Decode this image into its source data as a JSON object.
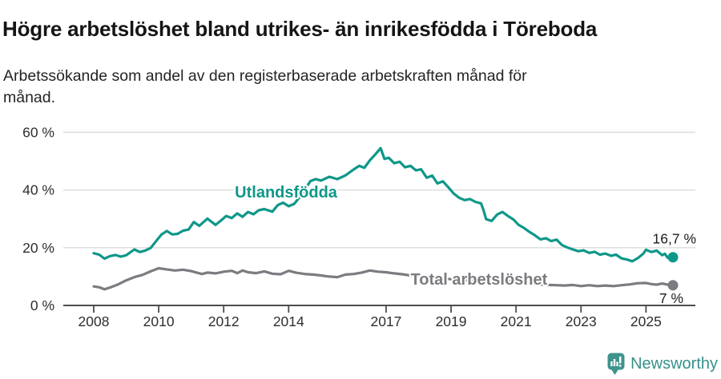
{
  "title": "Högre arbetslöshet bland utrikes- än inrikesfödda i Töreboda",
  "subtitle": "Arbetssökande som andel av den registerbaserade arbetskraften månad för månad.",
  "footer": {
    "brand": "Newsworthy",
    "logo_icon": "speech-bubble-bar-chart",
    "brand_color": "#35918a",
    "logo_fill": "#3e948d"
  },
  "chart_data": {
    "type": "line",
    "title": "Högre arbetslöshet bland utrikes- än inrikesfödda i Töreboda",
    "xlabel": "",
    "ylabel": "",
    "unit": "%",
    "xlim": [
      2007.1,
      2026.5
    ],
    "ylim": [
      0,
      62
    ],
    "grid": "horizontal-only",
    "x_ticks": [
      2008,
      2010,
      2012,
      2014,
      2017,
      2019,
      2021,
      2023,
      2025
    ],
    "x_tick_labels": [
      "2008",
      "2010",
      "2012",
      "2014",
      "2017",
      "2019",
      "2021",
      "2023",
      "2025"
    ],
    "y_ticks": [
      0,
      20,
      40,
      60
    ],
    "y_tick_labels": [
      "0 %",
      "20 %",
      "40 %",
      "60 %"
    ],
    "legend_position": "inline-labels-on-lines",
    "series": [
      {
        "name": "Utlandsfödda",
        "color": "#0e9789",
        "label_x": 2013.92,
        "label_y": 39.4,
        "end_value": 16.7,
        "end_label": "16,7 %",
        "points": [
          [
            2008.0,
            18.1
          ],
          [
            2008.17,
            17.6
          ],
          [
            2008.33,
            16.2
          ],
          [
            2008.5,
            17.1
          ],
          [
            2008.67,
            17.5
          ],
          [
            2008.83,
            16.9
          ],
          [
            2009.0,
            17.4
          ],
          [
            2009.25,
            19.4
          ],
          [
            2009.42,
            18.5
          ],
          [
            2009.58,
            19.0
          ],
          [
            2009.75,
            19.9
          ],
          [
            2009.92,
            22.3
          ],
          [
            2010.08,
            24.5
          ],
          [
            2010.25,
            25.8
          ],
          [
            2010.42,
            24.6
          ],
          [
            2010.58,
            24.8
          ],
          [
            2010.75,
            25.9
          ],
          [
            2010.92,
            26.3
          ],
          [
            2011.08,
            28.9
          ],
          [
            2011.25,
            27.6
          ],
          [
            2011.5,
            30.1
          ],
          [
            2011.75,
            27.9
          ],
          [
            2011.92,
            29.5
          ],
          [
            2012.08,
            31.0
          ],
          [
            2012.25,
            30.3
          ],
          [
            2012.42,
            31.9
          ],
          [
            2012.58,
            30.7
          ],
          [
            2012.75,
            32.4
          ],
          [
            2012.92,
            31.6
          ],
          [
            2013.08,
            33.0
          ],
          [
            2013.25,
            33.4
          ],
          [
            2013.5,
            32.5
          ],
          [
            2013.67,
            34.8
          ],
          [
            2013.83,
            35.6
          ],
          [
            2014.0,
            34.4
          ],
          [
            2014.17,
            35.2
          ],
          [
            2014.33,
            37.4
          ],
          [
            2014.5,
            40.2
          ],
          [
            2014.67,
            43.1
          ],
          [
            2014.83,
            43.8
          ],
          [
            2015.0,
            43.3
          ],
          [
            2015.25,
            44.6
          ],
          [
            2015.5,
            43.8
          ],
          [
            2015.75,
            45.1
          ],
          [
            2016.0,
            47.1
          ],
          [
            2016.17,
            48.4
          ],
          [
            2016.33,
            47.7
          ],
          [
            2016.5,
            50.3
          ],
          [
            2016.67,
            52.4
          ],
          [
            2016.83,
            54.5
          ],
          [
            2016.95,
            50.8
          ],
          [
            2017.08,
            51.2
          ],
          [
            2017.25,
            49.3
          ],
          [
            2017.42,
            49.8
          ],
          [
            2017.58,
            47.9
          ],
          [
            2017.75,
            48.4
          ],
          [
            2017.92,
            46.8
          ],
          [
            2018.08,
            47.2
          ],
          [
            2018.25,
            44.3
          ],
          [
            2018.42,
            45.0
          ],
          [
            2018.58,
            42.3
          ],
          [
            2018.75,
            43.0
          ],
          [
            2018.92,
            40.9
          ],
          [
            2019.08,
            38.8
          ],
          [
            2019.25,
            37.3
          ],
          [
            2019.42,
            36.5
          ],
          [
            2019.58,
            36.9
          ],
          [
            2019.75,
            35.9
          ],
          [
            2019.92,
            35.4
          ],
          [
            2020.0,
            33.0
          ],
          [
            2020.08,
            29.9
          ],
          [
            2020.25,
            29.3
          ],
          [
            2020.42,
            31.5
          ],
          [
            2020.58,
            32.4
          ],
          [
            2020.75,
            31.0
          ],
          [
            2020.92,
            29.8
          ],
          [
            2021.08,
            27.9
          ],
          [
            2021.25,
            26.8
          ],
          [
            2021.42,
            25.4
          ],
          [
            2021.58,
            24.3
          ],
          [
            2021.75,
            22.9
          ],
          [
            2021.92,
            23.3
          ],
          [
            2022.08,
            22.3
          ],
          [
            2022.25,
            22.8
          ],
          [
            2022.42,
            20.9
          ],
          [
            2022.58,
            20.1
          ],
          [
            2022.75,
            19.4
          ],
          [
            2022.92,
            18.8
          ],
          [
            2023.08,
            19.1
          ],
          [
            2023.25,
            18.2
          ],
          [
            2023.42,
            18.6
          ],
          [
            2023.58,
            17.6
          ],
          [
            2023.75,
            18.0
          ],
          [
            2023.92,
            17.2
          ],
          [
            2024.08,
            17.6
          ],
          [
            2024.25,
            16.3
          ],
          [
            2024.42,
            15.9
          ],
          [
            2024.58,
            15.3
          ],
          [
            2024.75,
            16.4
          ],
          [
            2024.92,
            18.0
          ],
          [
            2025.0,
            19.3
          ],
          [
            2025.17,
            18.5
          ],
          [
            2025.33,
            19.0
          ],
          [
            2025.5,
            17.4
          ],
          [
            2025.58,
            17.9
          ],
          [
            2025.67,
            16.5
          ],
          [
            2025.83,
            16.7
          ]
        ]
      },
      {
        "name": "Total arbetslöshet",
        "color": "#7b7b80",
        "label_x": 2019.86,
        "label_y": 9.1,
        "end_value": 7,
        "end_label": "7 %",
        "points": [
          [
            2008.0,
            6.6
          ],
          [
            2008.17,
            6.3
          ],
          [
            2008.33,
            5.6
          ],
          [
            2008.5,
            6.2
          ],
          [
            2008.75,
            7.3
          ],
          [
            2009.0,
            8.7
          ],
          [
            2009.25,
            9.8
          ],
          [
            2009.5,
            10.6
          ],
          [
            2009.75,
            11.8
          ],
          [
            2010.0,
            12.9
          ],
          [
            2010.25,
            12.5
          ],
          [
            2010.5,
            12.1
          ],
          [
            2010.75,
            12.4
          ],
          [
            2011.0,
            11.9
          ],
          [
            2011.17,
            11.4
          ],
          [
            2011.33,
            10.9
          ],
          [
            2011.5,
            11.4
          ],
          [
            2011.75,
            11.1
          ],
          [
            2012.0,
            11.7
          ],
          [
            2012.25,
            12.0
          ],
          [
            2012.42,
            11.2
          ],
          [
            2012.58,
            12.1
          ],
          [
            2012.75,
            11.5
          ],
          [
            2013.0,
            11.2
          ],
          [
            2013.25,
            11.8
          ],
          [
            2013.5,
            11.0
          ],
          [
            2013.75,
            10.8
          ],
          [
            2014.0,
            12.0
          ],
          [
            2014.25,
            11.3
          ],
          [
            2014.5,
            10.9
          ],
          [
            2014.75,
            10.7
          ],
          [
            2015.0,
            10.4
          ],
          [
            2015.25,
            10.0
          ],
          [
            2015.5,
            9.8
          ],
          [
            2015.75,
            10.7
          ],
          [
            2016.0,
            10.9
          ],
          [
            2016.25,
            11.4
          ],
          [
            2016.5,
            12.1
          ],
          [
            2016.75,
            11.7
          ],
          [
            2017.0,
            11.5
          ],
          [
            2017.25,
            11.1
          ],
          [
            2017.5,
            10.8
          ],
          [
            2017.75,
            10.4
          ],
          [
            2018.0,
            10.2
          ],
          [
            2018.25,
            9.9
          ],
          [
            2018.5,
            9.6
          ],
          [
            2018.75,
            9.4
          ],
          [
            2019.0,
            9.1
          ],
          [
            2019.25,
            8.9
          ],
          [
            2019.5,
            8.7
          ],
          [
            2019.75,
            8.5
          ],
          [
            2020.0,
            8.3
          ],
          [
            2020.25,
            8.7
          ],
          [
            2020.5,
            8.8
          ],
          [
            2020.75,
            8.5
          ],
          [
            2021.0,
            8.2
          ],
          [
            2021.25,
            7.9
          ],
          [
            2021.5,
            7.6
          ],
          [
            2021.75,
            7.3
          ],
          [
            2022.0,
            7.1
          ],
          [
            2022.25,
            7.0
          ],
          [
            2022.5,
            6.9
          ],
          [
            2022.75,
            7.1
          ],
          [
            2023.0,
            6.7
          ],
          [
            2023.25,
            7.0
          ],
          [
            2023.5,
            6.7
          ],
          [
            2023.75,
            6.9
          ],
          [
            2024.0,
            6.7
          ],
          [
            2024.25,
            7.0
          ],
          [
            2024.5,
            7.3
          ],
          [
            2024.75,
            7.7
          ],
          [
            2025.0,
            7.8
          ],
          [
            2025.17,
            7.4
          ],
          [
            2025.33,
            7.2
          ],
          [
            2025.5,
            7.6
          ],
          [
            2025.67,
            7.2
          ],
          [
            2025.83,
            7.0
          ]
        ]
      }
    ],
    "style": {
      "grid_color": "#dcdcdc",
      "axis_color": "#4d4d4d",
      "tick_label_color": "#2e2e2e",
      "value_label_color": "#1c1c1c"
    }
  }
}
